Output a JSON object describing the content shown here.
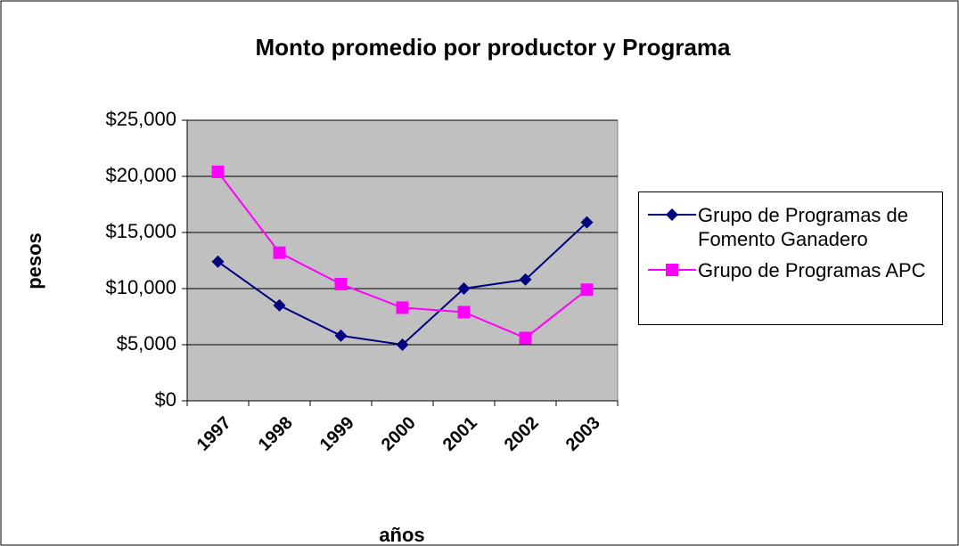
{
  "chart_data": {
    "type": "line",
    "title": "Monto promedio por productor y Programa",
    "x_label": "años",
    "y_label": "pesos",
    "categories": [
      "1997",
      "1998",
      "1999",
      "2000",
      "2001",
      "2002",
      "2003"
    ],
    "series": [
      {
        "name": "Grupo de Programas de Fomento Ganadero",
        "color": "#000080",
        "marker": "diamond",
        "values": [
          12400,
          8500,
          5800,
          5000,
          10000,
          10800,
          15900
        ]
      },
      {
        "name": "Grupo de Programas APC",
        "color": "#ff00ff",
        "marker": "square",
        "values": [
          20400,
          13200,
          10400,
          8300,
          7900,
          5600,
          9900
        ]
      }
    ],
    "ylim": [
      0,
      25000
    ],
    "yticks": [
      {
        "value": 0,
        "label": "$0"
      },
      {
        "value": 5000,
        "label": "$5,000"
      },
      {
        "value": 10000,
        "label": "$10,000"
      },
      {
        "value": 15000,
        "label": "$15,000"
      },
      {
        "value": 20000,
        "label": "$20,000"
      },
      {
        "value": 25000,
        "label": "$25,000"
      }
    ],
    "grid": true,
    "legend": "right",
    "plot_background": "#c0c0c0"
  }
}
